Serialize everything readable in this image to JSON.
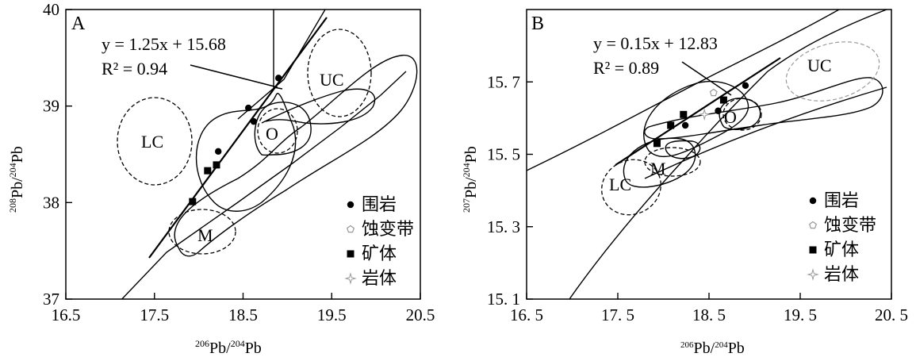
{
  "chart_data": [
    {
      "type": "scatter",
      "panel_label": "A",
      "xlabel": "206Pb/204Pb",
      "ylabel": "208Pb/204Pb",
      "xlim": [
        16.5,
        20.5
      ],
      "ylim": [
        37,
        40
      ],
      "xticks": [
        "16.5",
        "17.5",
        "18.5",
        "19.5",
        "20.5"
      ],
      "yticks": [
        "37",
        "38",
        "39",
        "40"
      ],
      "regression": {
        "equation": "y = 1.25x + 15.68",
        "r2": "R² = 0.94",
        "slope": 1.25,
        "intercept": 15.68,
        "x_range": [
          17.42,
          19.3
        ]
      },
      "regions": [
        "LC",
        "UC",
        "O",
        "M"
      ],
      "series": [
        {
          "name": "围岩",
          "marker": "circle",
          "points": [
            [
              18.22,
              38.53
            ],
            [
              18.56,
              38.98
            ],
            [
              18.62,
              38.84
            ],
            [
              18.9,
              39.29
            ]
          ]
        },
        {
          "name": "矿体",
          "marker": "square",
          "points": [
            [
              17.93,
              38.01
            ],
            [
              18.1,
              38.33
            ],
            [
              18.2,
              38.39
            ]
          ]
        }
      ]
    },
    {
      "type": "scatter",
      "panel_label": "B",
      "xlabel": "206Pb/204Pb",
      "ylabel": "207Pb/204Pb",
      "xlim": [
        16.5,
        20.5
      ],
      "ylim": [
        15.1,
        15.9
      ],
      "xticks": [
        "16. 5",
        "17. 5",
        "18. 5",
        "19. 5",
        "20. 5"
      ],
      "yticks": [
        "15. 1",
        "15. 3",
        "15. 5",
        "15. 7"
      ],
      "regression": {
        "equation": "y = 0.15x + 12.83",
        "r2": "R² = 0.89",
        "slope": 0.15,
        "intercept": 12.83,
        "x_range": [
          17.5,
          19.4
        ]
      },
      "regions": [
        "UC",
        "O",
        "M",
        "LC"
      ],
      "series": [
        {
          "name": "围岩",
          "marker": "circle",
          "points": [
            [
              18.24,
              15.58
            ],
            [
              18.6,
              15.62
            ],
            [
              18.9,
              15.69
            ]
          ]
        },
        {
          "name": "蚀变带",
          "marker": "pentagon",
          "points": [
            [
              18.55,
              15.67
            ]
          ]
        },
        {
          "name": "矿体",
          "marker": "square",
          "points": [
            [
              17.93,
              15.53
            ],
            [
              18.08,
              15.58
            ],
            [
              18.22,
              15.61
            ],
            [
              18.66,
              15.65
            ]
          ]
        },
        {
          "name": "岩体",
          "marker": "star",
          "points": [
            [
              18.45,
              15.61
            ]
          ]
        }
      ]
    }
  ],
  "legend": {
    "items": [
      {
        "label": "围岩",
        "symbol": "●"
      },
      {
        "label": "蚀变带",
        "symbol": "⬠"
      },
      {
        "label": "矿体",
        "symbol": "■"
      },
      {
        "label": "岩体",
        "symbol": "✧"
      }
    ],
    "placement": "bottom-right"
  },
  "colors": {
    "ink": "#000000",
    "grey_marker": "#999999"
  }
}
